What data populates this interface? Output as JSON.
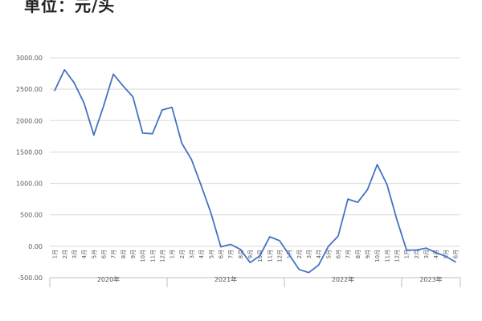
{
  "header": {
    "unit_title": "单位：元/头"
  },
  "colors": {
    "line": "#4472C4",
    "grid": "#D9D9D9",
    "axis": "#BFBFBF",
    "text": "#595959"
  },
  "chart_data": {
    "type": "line",
    "title": "",
    "xlabel": "",
    "ylabel": "",
    "ylim": [
      -500,
      3000
    ],
    "yticks": [
      "3000.00",
      "2500.00",
      "2000.00",
      "1500.00",
      "1000.00",
      "500.00",
      "0.00",
      "-500.00"
    ],
    "ytick_values": [
      3000,
      2500,
      2000,
      1500,
      1000,
      500,
      0,
      -500
    ],
    "grid": "horizontal",
    "legend": "none",
    "years": [
      {
        "label": "2020年",
        "months": 12
      },
      {
        "label": "2021年",
        "months": 12
      },
      {
        "label": "2022年",
        "months": 12
      },
      {
        "label": "2023年",
        "months": 6
      }
    ],
    "month_labels": [
      "1月",
      "2月",
      "3月",
      "4月",
      "5月",
      "6月",
      "7月",
      "8月",
      "9月",
      "10月",
      "11月",
      "12月",
      "1月",
      "2月",
      "3月",
      "4月",
      "5月",
      "6月",
      "7月",
      "8月",
      "9月",
      "10月",
      "11月",
      "12月",
      "1月",
      "2月",
      "3月",
      "4月",
      "5月",
      "6月",
      "7月",
      "8月",
      "9月",
      "10月",
      "11月",
      "12月",
      "1月",
      "2月",
      "3月",
      "4月",
      "5月",
      "6月"
    ],
    "series": [
      {
        "values": [
          2480,
          2810,
          2600,
          2280,
          1770,
          2230,
          2740,
          2550,
          2380,
          1800,
          1790,
          2170,
          2210,
          1640,
          1380,
          960,
          520,
          -10,
          30,
          -50,
          -260,
          -150,
          150,
          90,
          -140,
          -370,
          -420,
          -300,
          0,
          160,
          750,
          700,
          900,
          1300,
          980,
          430,
          -60,
          -60,
          -30,
          -100,
          -160,
          -250
        ]
      }
    ]
  }
}
